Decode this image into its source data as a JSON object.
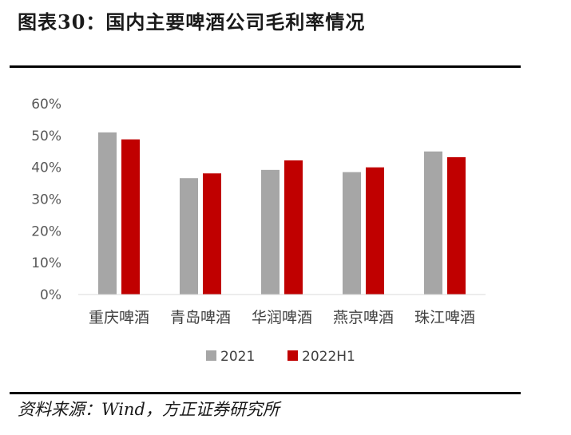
{
  "figure": {
    "title": "图表30：国内主要啤酒公司毛利率情况",
    "source": "资料来源：Wind，方正证券研究所"
  },
  "chart_data": {
    "type": "bar",
    "categories": [
      "重庆啤酒",
      "青岛啤酒",
      "华润啤酒",
      "燕京啤酒",
      "珠江啤酒"
    ],
    "series": [
      {
        "name": "2021",
        "color": "#a6a6a6",
        "values": [
          51.0,
          36.6,
          39.2,
          38.5,
          45.0
        ]
      },
      {
        "name": "2022H1",
        "color": "#c00000",
        "values": [
          48.8,
          38.1,
          42.2,
          40.0,
          43.2
        ]
      }
    ],
    "ylim": [
      0,
      60
    ],
    "yticks": [
      0,
      10,
      20,
      30,
      40,
      50,
      60
    ],
    "ytick_labels": [
      "0%",
      "10%",
      "20%",
      "30%",
      "40%",
      "50%",
      "60%"
    ],
    "grid": false,
    "legend_position": "bottom"
  }
}
